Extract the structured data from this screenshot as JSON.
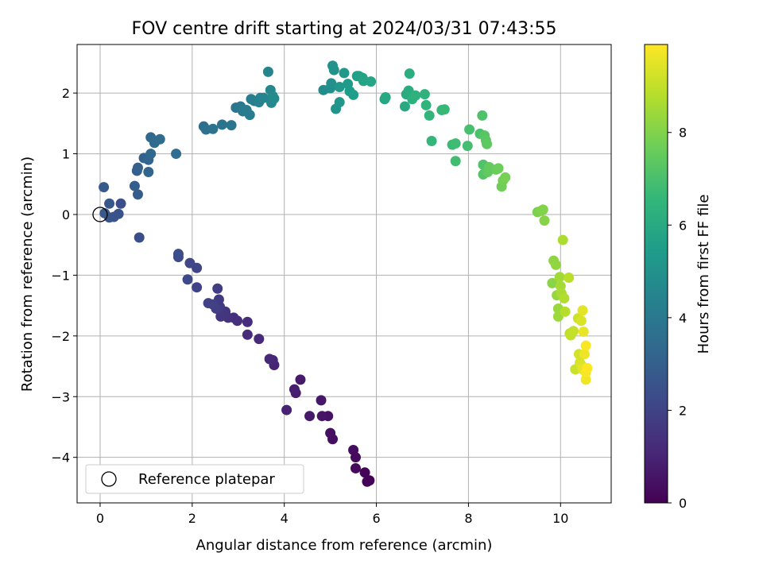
{
  "chart_data": {
    "type": "scatter",
    "title": "FOV centre drift starting at 2024/03/31 07:43:55",
    "xlabel": "Angular distance from reference (arcmin)",
    "ylabel": "Rotation from reference (arcmin)",
    "xlim": [
      -0.5,
      11.1
    ],
    "ylim": [
      -4.75,
      2.8
    ],
    "xticks": [
      0,
      2,
      4,
      6,
      8,
      10
    ],
    "yticks": [
      -4,
      -3,
      -2,
      -1,
      0,
      1,
      2
    ],
    "grid": true,
    "legend": {
      "position": "lower-left",
      "entries": [
        {
          "label": "Reference platepar",
          "marker": "open-circle"
        }
      ]
    },
    "reference_point": {
      "x": 0,
      "y": 0
    },
    "colorbar": {
      "label": "Hours from first FF file",
      "colormap": "viridis",
      "range": [
        0,
        9.9
      ],
      "ticks": [
        0,
        2,
        4,
        6,
        8
      ],
      "colors": [
        "#440154",
        "#482878",
        "#3e4989",
        "#31688e",
        "#26828e",
        "#1f9e89",
        "#35b779",
        "#6ece58",
        "#b5de2b",
        "#fde725"
      ]
    },
    "series": [
      {
        "columns": [
          "x",
          "y",
          "hours"
        ],
        "points": [
          [
            5.85,
            -4.38
          ],
          [
            5.8,
            -4.4
          ],
          [
            5.75,
            -4.25
          ],
          [
            5.55,
            -4.18
          ],
          [
            5.55,
            -4.0
          ],
          [
            5.5,
            -3.88
          ],
          [
            5.05,
            -3.7
          ],
          [
            5.0,
            -3.6
          ],
          [
            4.95,
            -3.32
          ],
          [
            4.82,
            -3.32
          ],
          [
            4.8,
            -3.06
          ],
          [
            4.55,
            -3.32
          ],
          [
            4.35,
            -2.72
          ],
          [
            4.25,
            -2.94
          ],
          [
            4.22,
            -2.88
          ],
          [
            4.05,
            -3.22
          ],
          [
            3.78,
            -2.48
          ],
          [
            3.75,
            -2.4
          ],
          [
            3.68,
            -2.38
          ],
          [
            3.45,
            -2.05
          ],
          [
            3.2,
            -1.98
          ],
          [
            3.2,
            -1.77
          ],
          [
            2.98,
            -1.75
          ],
          [
            2.9,
            -1.7
          ],
          [
            2.78,
            -1.7
          ],
          [
            2.72,
            -1.6
          ],
          [
            2.62,
            -1.68
          ],
          [
            2.6,
            -1.52
          ],
          [
            2.58,
            -1.4
          ],
          [
            2.55,
            -1.22
          ],
          [
            2.52,
            -1.55
          ],
          [
            2.45,
            -1.48
          ],
          [
            2.35,
            -1.46
          ],
          [
            2.1,
            -1.2
          ],
          [
            2.1,
            -0.88
          ],
          [
            1.95,
            -0.8
          ],
          [
            1.9,
            -1.07
          ],
          [
            1.7,
            -0.7
          ],
          [
            1.7,
            -0.65
          ],
          [
            0.85,
            -0.38
          ],
          [
            0.45,
            0.18
          ],
          [
            0.4,
            0.01
          ],
          [
            0.3,
            -0.04
          ],
          [
            0.2,
            -0.05
          ],
          [
            0.2,
            0.18
          ],
          [
            0.1,
            0.02
          ],
          [
            0.08,
            0.45
          ],
          [
            0.82,
            0.33
          ],
          [
            0.75,
            0.47
          ],
          [
            0.8,
            0.72
          ],
          [
            0.82,
            0.77
          ],
          [
            0.95,
            0.93
          ],
          [
            1.05,
            0.7
          ],
          [
            1.05,
            0.9
          ],
          [
            1.1,
            1.0
          ],
          [
            1.1,
            1.27
          ],
          [
            1.18,
            1.18
          ],
          [
            1.3,
            1.24
          ],
          [
            1.65,
            1.0
          ],
          [
            2.25,
            1.45
          ],
          [
            2.3,
            1.4
          ],
          [
            2.45,
            1.41
          ],
          [
            2.65,
            1.48
          ],
          [
            2.85,
            1.47
          ],
          [
            2.95,
            1.76
          ],
          [
            3.05,
            1.78
          ],
          [
            3.1,
            1.7
          ],
          [
            3.18,
            1.72
          ],
          [
            3.25,
            1.64
          ],
          [
            3.28,
            1.9
          ],
          [
            3.35,
            1.87
          ],
          [
            3.45,
            1.85
          ],
          [
            3.48,
            1.92
          ],
          [
            3.55,
            1.92
          ],
          [
            3.65,
            2.35
          ],
          [
            3.7,
            2.05
          ],
          [
            3.72,
            1.84
          ],
          [
            3.75,
            1.95
          ],
          [
            3.78,
            1.91
          ],
          [
            4.85,
            2.05
          ],
          [
            5.0,
            2.08
          ],
          [
            5.02,
            2.16
          ],
          [
            5.05,
            2.45
          ],
          [
            5.08,
            2.38
          ],
          [
            5.12,
            1.74
          ],
          [
            5.2,
            1.85
          ],
          [
            5.2,
            2.1
          ],
          [
            5.3,
            2.33
          ],
          [
            5.38,
            2.15
          ],
          [
            5.42,
            2.03
          ],
          [
            5.5,
            1.97
          ],
          [
            5.58,
            2.28
          ],
          [
            5.62,
            2.28
          ],
          [
            5.7,
            2.25
          ],
          [
            5.72,
            2.2
          ],
          [
            5.88,
            2.19
          ],
          [
            6.18,
            1.9
          ],
          [
            6.2,
            1.93
          ],
          [
            6.62,
            1.78
          ],
          [
            6.65,
            1.98
          ],
          [
            6.7,
            2.04
          ],
          [
            6.72,
            2.32
          ],
          [
            6.78,
            1.9
          ],
          [
            6.85,
            1.96
          ],
          [
            7.05,
            1.98
          ],
          [
            7.08,
            1.8
          ],
          [
            7.15,
            1.63
          ],
          [
            7.2,
            1.21
          ],
          [
            7.42,
            1.72
          ],
          [
            7.48,
            1.73
          ],
          [
            7.65,
            1.15
          ],
          [
            7.72,
            1.17
          ],
          [
            7.72,
            0.88
          ],
          [
            7.98,
            1.13
          ],
          [
            8.02,
            1.4
          ],
          [
            8.25,
            1.33
          ],
          [
            8.3,
            1.63
          ],
          [
            8.32,
            0.82
          ],
          [
            8.32,
            0.66
          ],
          [
            8.35,
            1.3
          ],
          [
            8.38,
            1.22
          ],
          [
            8.4,
            1.16
          ],
          [
            8.42,
            0.7
          ],
          [
            8.45,
            0.78
          ],
          [
            8.6,
            0.74
          ],
          [
            8.65,
            0.76
          ],
          [
            8.72,
            0.46
          ],
          [
            8.75,
            0.56
          ],
          [
            8.8,
            0.61
          ],
          [
            9.5,
            0.04
          ],
          [
            9.58,
            0.06
          ],
          [
            9.62,
            0.08
          ],
          [
            9.65,
            -0.1
          ],
          [
            9.82,
            -1.13
          ],
          [
            9.85,
            -0.76
          ],
          [
            9.9,
            -0.83
          ],
          [
            9.92,
            -1.33
          ],
          [
            9.95,
            -1.55
          ],
          [
            9.95,
            -1.68
          ],
          [
            9.98,
            -1.03
          ],
          [
            10.0,
            -1.18
          ],
          [
            10.02,
            -1.3
          ],
          [
            10.05,
            -0.42
          ],
          [
            10.08,
            -1.38
          ],
          [
            10.1,
            -1.6
          ],
          [
            10.18,
            -1.04
          ],
          [
            10.2,
            -1.96
          ],
          [
            10.22,
            -1.99
          ],
          [
            10.28,
            -1.92
          ],
          [
            10.32,
            -2.55
          ],
          [
            10.38,
            -1.71
          ],
          [
            10.4,
            -2.3
          ],
          [
            10.42,
            -2.44
          ],
          [
            10.45,
            -1.75
          ],
          [
            10.45,
            -2.48
          ],
          [
            10.48,
            -1.58
          ],
          [
            10.48,
            -2.55
          ],
          [
            10.5,
            -1.93
          ],
          [
            10.52,
            -2.3
          ],
          [
            10.55,
            -2.72
          ],
          [
            10.55,
            -2.6
          ],
          [
            10.55,
            -2.16
          ],
          [
            10.58,
            -2.53
          ]
        ]
      }
    ]
  }
}
